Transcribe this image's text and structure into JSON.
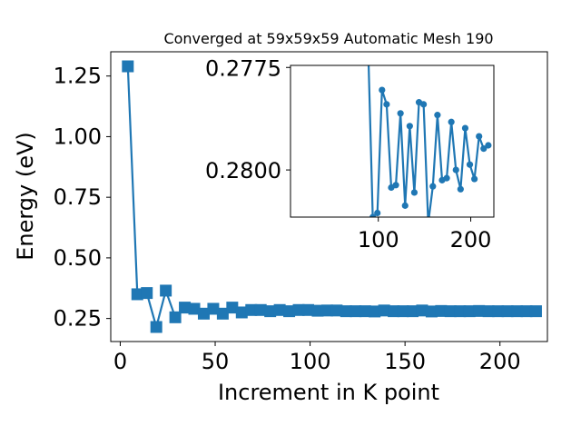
{
  "chart_data": [
    {
      "type": "line",
      "title": "Converged at 59x59x59 Automatic Mesh 190",
      "xlabel": "Increment in K point",
      "ylabel": "Energy (eV)",
      "xlim": [
        -5,
        225
      ],
      "ylim": [
        0.155,
        1.35
      ],
      "xticks": [
        0,
        50,
        100,
        150,
        200
      ],
      "xtick_labels": [
        "0",
        "50",
        "100",
        "150",
        "200"
      ],
      "yticks": [
        0.25,
        0.5,
        0.75,
        1.0,
        1.25
      ],
      "ytick_labels": [
        "0.25",
        "0.50",
        "0.75",
        "1.00",
        "1.25"
      ],
      "grid": false,
      "color": "#1f77b4",
      "marker": "square",
      "series": [
        {
          "x": [
            4,
            9,
            14,
            19,
            24,
            29,
            34,
            39,
            44,
            49,
            54,
            59,
            64,
            69,
            74,
            79,
            84,
            89,
            94,
            99,
            104,
            109,
            114,
            119,
            124,
            129,
            134,
            139,
            144,
            149,
            154,
            159,
            164,
            169,
            174,
            179,
            184,
            189,
            194,
            199,
            204,
            209,
            214,
            219
          ],
          "values": [
            1.29,
            0.35,
            0.355,
            0.215,
            0.365,
            0.255,
            0.295,
            0.29,
            0.27,
            0.29,
            0.27,
            0.295,
            0.275,
            0.285,
            0.285,
            0.28,
            0.285,
            0.28,
            0.285,
            0.285,
            0.282,
            0.283,
            0.283,
            0.28,
            0.28,
            0.28,
            0.279,
            0.283,
            0.28,
            0.28,
            0.28,
            0.283,
            0.279,
            0.281,
            0.28,
            0.28,
            0.28,
            0.281,
            0.28,
            0.28,
            0.28,
            0.28,
            0.28,
            0.28
          ]
        }
      ]
    },
    {
      "type": "line",
      "title": "",
      "xlabel": "",
      "ylabel": "",
      "xlim": [
        5,
        225
      ],
      "ylim": [
        0.28115,
        0.27745
      ],
      "y_inverted": true,
      "xticks": [
        100,
        200
      ],
      "xtick_labels": [
        "100",
        "200"
      ],
      "yticks": [
        0.2775,
        0.28
      ],
      "ytick_labels": [
        "0.2775",
        "0.2800"
      ],
      "grid": false,
      "color": "#1f77b4",
      "marker": "circle",
      "series": [
        {
          "x": [
            89,
            94,
            99,
            104,
            109,
            114,
            119,
            124,
            129,
            134,
            139,
            144,
            149,
            154,
            159,
            164,
            169,
            174,
            179,
            184,
            189,
            194,
            199,
            204,
            209,
            214,
            219
          ],
          "values": [
            0.277,
            0.28115,
            0.28105,
            0.27805,
            0.2784,
            0.28043,
            0.28037,
            0.27862,
            0.28087,
            0.27893,
            0.28055,
            0.27835,
            0.2784,
            0.2813,
            0.2804,
            0.27866,
            0.28025,
            0.2802,
            0.27883,
            0.28,
            0.28047,
            0.27898,
            0.27987,
            0.28022,
            0.27918,
            0.27948,
            0.2794
          ]
        }
      ]
    }
  ]
}
